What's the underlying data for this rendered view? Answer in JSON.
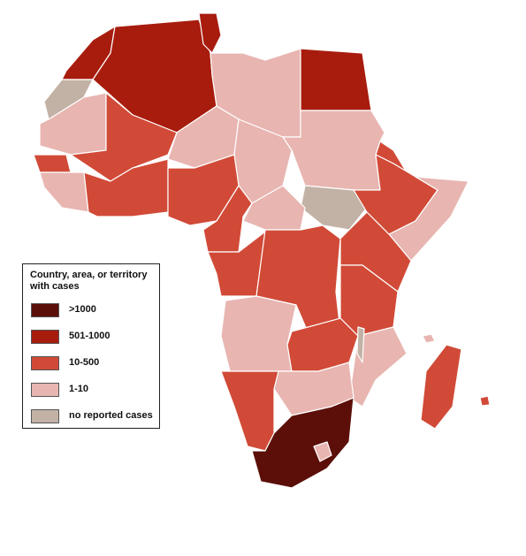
{
  "legend": {
    "title": "Country, area, or territory with cases",
    "items": [
      {
        "label": ">1000",
        "color": "#5c0f09"
      },
      {
        "label": "501-1000",
        "color": "#a81c0e"
      },
      {
        "label": "10-500",
        "color": "#d14a37"
      },
      {
        "label": "1-10",
        "color": "#e8b5b0"
      },
      {
        "label": "no reported cases",
        "color": "#c2b2a5"
      }
    ]
  }
}
